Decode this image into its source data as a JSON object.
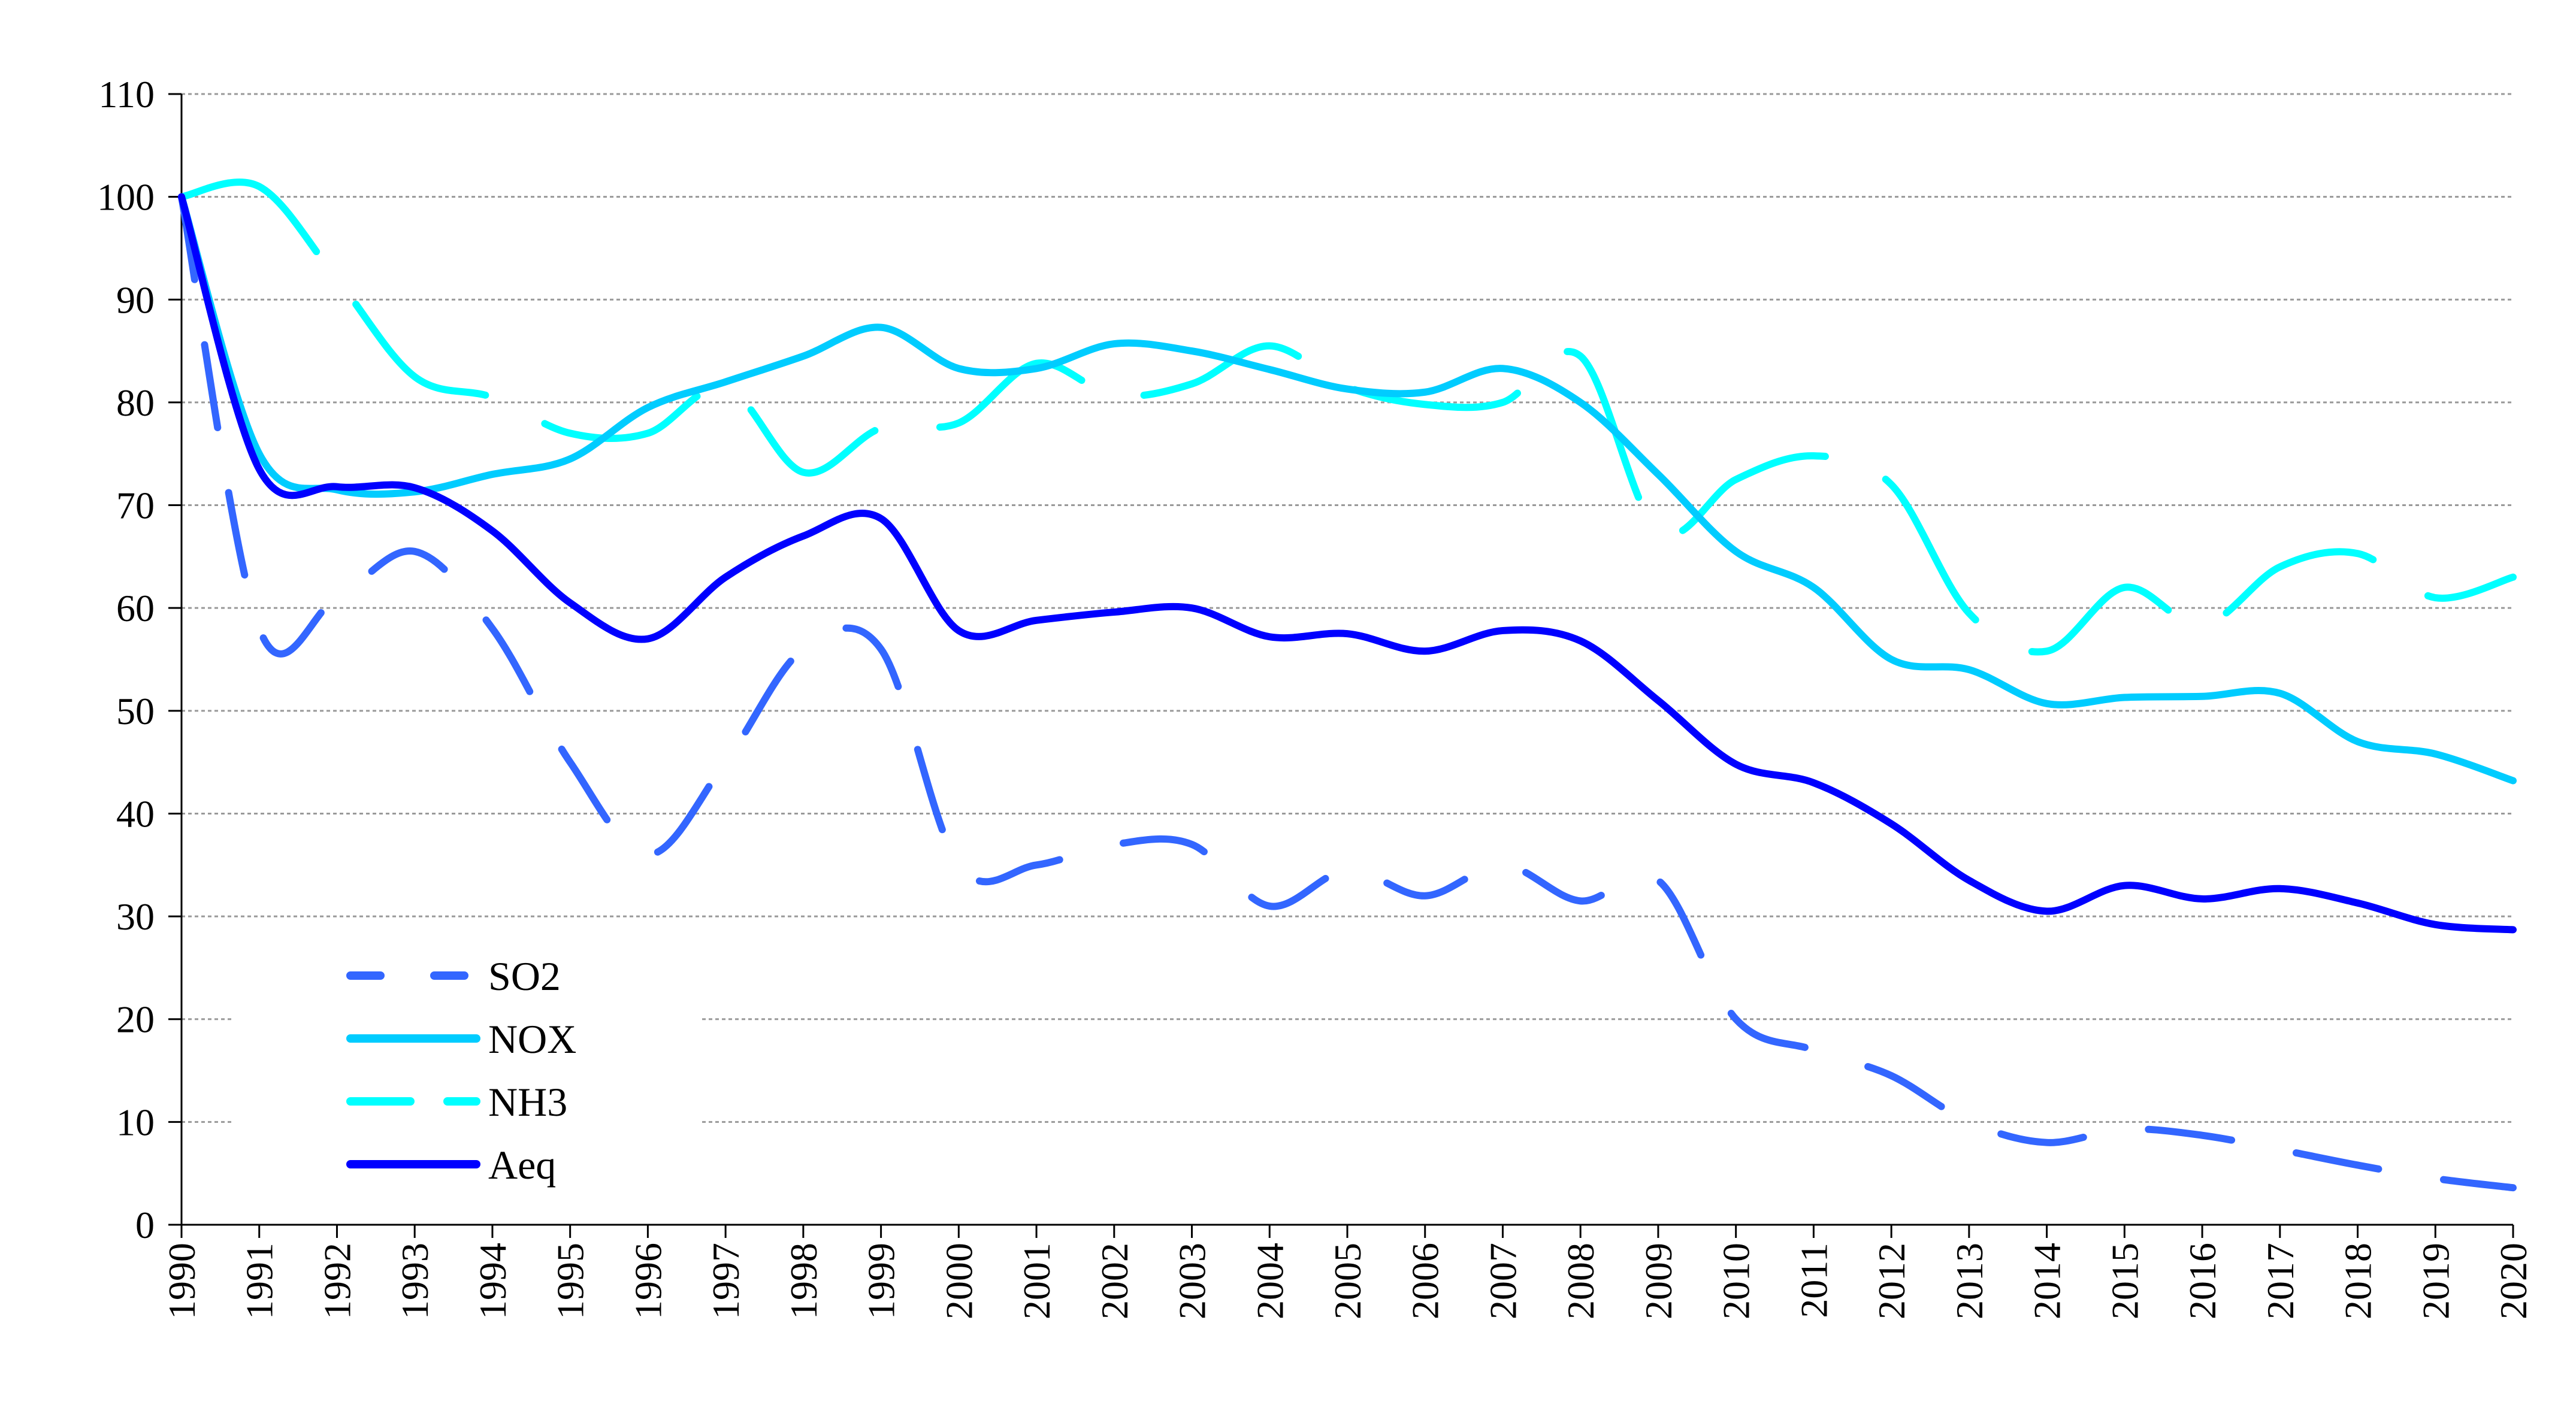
{
  "chart_data": {
    "type": "line",
    "title": "",
    "xlabel": "",
    "ylabel": "",
    "ylim": [
      0,
      110
    ],
    "yticks": [
      0,
      10,
      20,
      30,
      40,
      50,
      60,
      70,
      80,
      90,
      100,
      110
    ],
    "grid": true,
    "legend_position": "bottom-left",
    "x": [
      1990,
      1991,
      1992,
      1993,
      1994,
      1995,
      1996,
      1997,
      1998,
      1999,
      2000,
      2001,
      2002,
      2003,
      2004,
      2005,
      2006,
      2007,
      2008,
      2009,
      2010,
      2011,
      2012,
      2013,
      2014,
      2015,
      2016,
      2017,
      2018,
      2019,
      2020
    ],
    "series": [
      {
        "name": "SO2",
        "color": "#3366FF",
        "style": "dashed",
        "values": [
          100,
          58,
          61,
          65.5,
          58,
          45,
          36,
          45,
          56,
          56,
          35,
          35,
          37,
          37,
          31,
          34.5,
          32,
          35,
          31.5,
          33.5,
          20,
          17,
          14.5,
          10,
          8,
          9.3,
          8.7,
          7.3,
          5.8,
          4.5,
          3.6
        ]
      },
      {
        "name": "NOX",
        "color": "#00CCFF",
        "style": "solid",
        "values": [
          100,
          75,
          71.5,
          71.3,
          73,
          74.5,
          79.5,
          82,
          84.5,
          87.3,
          83.3,
          83.3,
          85.7,
          85,
          83.2,
          81.3,
          81,
          83.3,
          80,
          73,
          65.5,
          62,
          55,
          54,
          50.7,
          51.3,
          51.4,
          51.7,
          47,
          45.8,
          43.2
        ]
      },
      {
        "name": "NH3",
        "color": "#00FFFF",
        "style": "long-dash",
        "values": [
          100,
          101,
          92,
          82.5,
          80.5,
          77,
          77,
          81.5,
          73.2,
          77.5,
          78,
          83.8,
          80.7,
          81.8,
          85.5,
          81.5,
          79.8,
          80,
          84.5,
          67.5,
          72.5,
          74.8,
          72,
          59.5,
          55.8,
          62,
          58.3,
          64,
          65.3,
          61,
          63
        ]
      },
      {
        "name": "Aeq",
        "color": "#0000FF",
        "style": "solid",
        "values": [
          100,
          73.5,
          71.8,
          71.7,
          67.5,
          60.5,
          57,
          63,
          67,
          68.7,
          57.8,
          58.8,
          59.6,
          60,
          57.2,
          57.5,
          55.8,
          57.8,
          56.8,
          51,
          44.8,
          43,
          39,
          33.5,
          30.5,
          33,
          31.7,
          32.7,
          31.3,
          29.2,
          28.7
        ]
      }
    ]
  }
}
